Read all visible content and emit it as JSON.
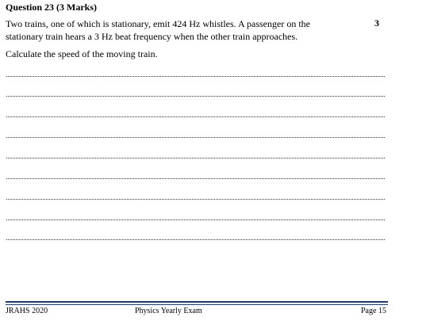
{
  "question": {
    "title": "Question 23 (3 Marks)",
    "text_line1": "Two trains, one of which is stationary, emit 424 Hz whistles. A passenger on the",
    "text_line2": "stationary train hears a 3 Hz  beat frequency when the other train approaches.",
    "marks": "3",
    "instruction": "Calculate the speed of the moving train."
  },
  "answer_lines_count": 9,
  "footer": {
    "left": "JRAHS 2020",
    "center": "Physics Yearly Exam",
    "right": "Page 15",
    "rule_color": "#1f3a6e"
  }
}
